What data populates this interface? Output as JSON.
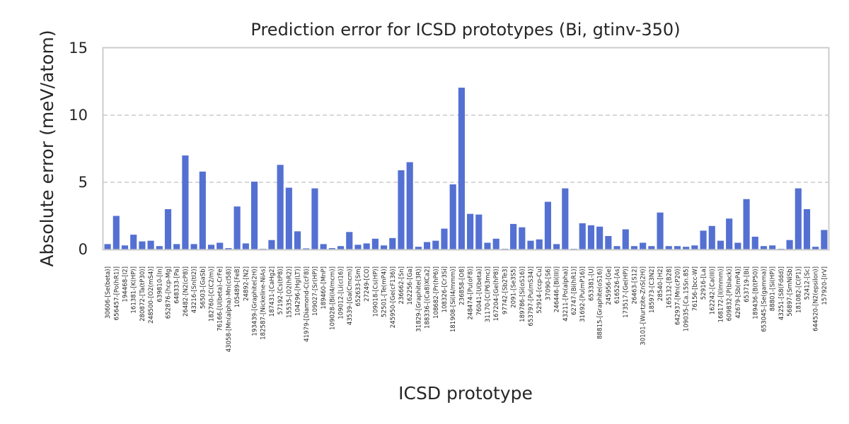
{
  "chart_data": {
    "type": "bar",
    "title": "Prediction error for ICSD prototypes (Bi, gtinv-350)",
    "xlabel": "ICSD prototype",
    "ylabel": "Absolute error (meV/atom)",
    "ylim": [
      0,
      15
    ],
    "yticks": [
      0,
      5,
      10,
      15
    ],
    "grid": "y-dashed",
    "bar_color": "#5470d2",
    "categories": [
      "30606-[Se(beta)]",
      "656457-[Po(hR1)]",
      "194468-[I2]",
      "161381-[K(HP)]",
      "280872-[Ta(tP30)]",
      "248500-[O2(mS4)]",
      "639810-[In]",
      "652876-[hcp-Mg]",
      "648333-[Pa]",
      "26482-[N2(cP8)]",
      "43216-[Sn(tI2)]",
      "56503-[GaSb]",
      "182760-[C(C2/m)]",
      "76166-[U(beta)-CrFe]",
      "43058-[Mn(alpha)-Mn(cI58)]",
      "105489-[FeB]",
      "24892-[N2]",
      "193439-[Graphite(2H)]",
      "182587-[Nickeline-NiAs]",
      "187431-[CaHg2]",
      "57192-[Cs(tP8)]",
      "15535-[O2(hR2)]",
      "104296-[Hg(LT)]",
      "41979-[Diamond-C(cF8)]",
      "109027-[Sr(HP)]",
      "189460-[MnP]",
      "109028-[Bi(I4/mcm)]",
      "109012-[Li(cI16)]",
      "43539-[Ga(Cmcm)]",
      "652633-[Sm]",
      "27249-[CO]",
      "109018-[Cs(HP)]",
      "52501-[Te(mP4)]",
      "245950-[Ge(cF136)]",
      "236662-[Sn]",
      "162256-[Ga]",
      "31829-[Graphite(3R)]",
      "188336-[(Ca8)XCa2]",
      "108682-[Pr(hP6)]",
      "108326-[Cr3Si]",
      "181908-[Si(I4/mmm)]",
      "236858-[O8]",
      "248474-[Pu(oF8)]",
      "76041-[U(beta)]",
      "31170-[C(P63mc)]",
      "167204-[Ge(hP8)]",
      "97742-[Sb2Te3]",
      "2091-[Se3S5]",
      "189786-[Si(oS16)]",
      "653797-[Pu(mS34)]",
      "52914-[ccp-Cu]",
      "37090-[S6]",
      "246446-[Bi(III)]",
      "43211-[Po(alpha)]",
      "62747-[Bi(hR1)]",
      "31692-[Pu(mP16)]",
      "653381-[U]",
      "88815-[Graphite(oS16)]",
      "245956-[Ge]",
      "616526-[As]",
      "173517-[Ge(HP)]",
      "26463-[S12]",
      "30101-[Wurtzite-ZnS(2H)]",
      "185973-[C3N2]",
      "28540-[H2]",
      "165132-[B28]",
      "642937-[Mn(cP20)]",
      "109035-[Ca.15Sn.85]",
      "76156-[bcc-W]",
      "52916-[La]",
      "162242-[Ca(III)]",
      "168172-[I(Immm)]",
      "609832-[P(black)]",
      "42679-[Sb(mP4)]",
      "653719-[Bi]",
      "189436-[B(tP50)]",
      "653045-[Se(gamma)]",
      "88801-[Si(HP)]",
      "43251-[S8(Fddd)]",
      "56897-[SmNiSb]",
      "181082-[C(P1)]",
      "52412-[Sc]",
      "644520-[N2(epsilon)]",
      "157920-[IrV]"
    ],
    "values": [
      0.4,
      2.5,
      0.3,
      1.1,
      0.6,
      0.65,
      0.25,
      3.0,
      0.4,
      7.0,
      0.4,
      5.8,
      0.35,
      0.5,
      0.1,
      3.2,
      0.45,
      5.05,
      0.05,
      0.7,
      6.3,
      4.6,
      1.35,
      0.08,
      4.55,
      0.4,
      0.1,
      0.25,
      1.3,
      0.35,
      0.45,
      0.8,
      0.3,
      0.85,
      5.9,
      6.5,
      0.2,
      0.55,
      0.65,
      1.55,
      4.85,
      12.05,
      2.65,
      2.6,
      0.5,
      0.8,
      0.05,
      1.9,
      1.65,
      0.65,
      0.75,
      3.55,
      0.4,
      4.55,
      0.05,
      1.95,
      1.8,
      1.7,
      1.0,
      0.25,
      1.5,
      0.25,
      0.5,
      0.25,
      2.75,
      0.25,
      0.25,
      0.2,
      0.3,
      1.4,
      1.75,
      0.65,
      2.3,
      0.5,
      3.75,
      0.95,
      0.25,
      0.3,
      0.05,
      0.7,
      4.55,
      3.0,
      0.2,
      1.45
    ]
  }
}
